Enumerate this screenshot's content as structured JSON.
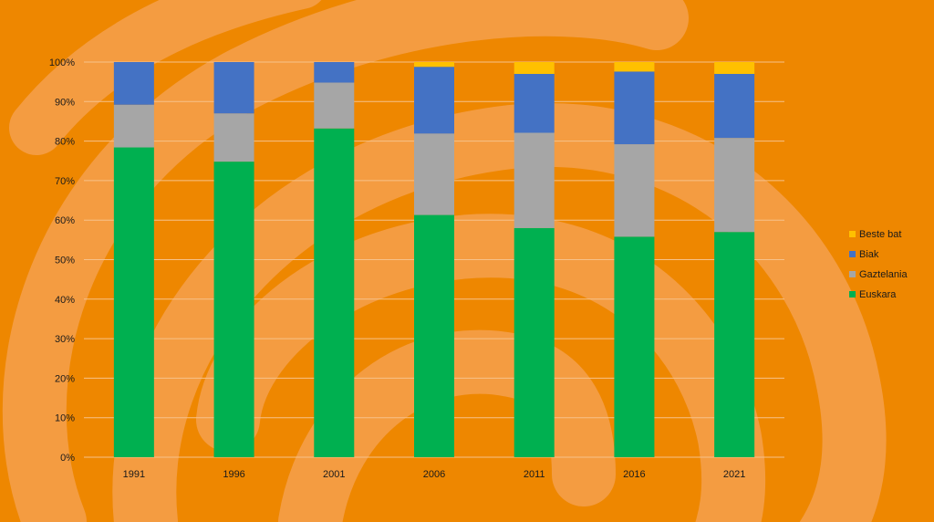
{
  "chart_data": {
    "type": "bar",
    "stacked": true,
    "normalized": true,
    "categories": [
      "1991",
      "1996",
      "2001",
      "2006",
      "2011",
      "2016",
      "2021"
    ],
    "series": [
      {
        "name": "Euskara",
        "color": "#00b050",
        "values": [
          78.4,
          74.8,
          83.2,
          61.3,
          58.0,
          55.8,
          57.0
        ]
      },
      {
        "name": "Gaztelania",
        "color": "#a6a6a6",
        "values": [
          10.8,
          12.2,
          11.6,
          20.6,
          24.1,
          23.4,
          23.8
        ]
      },
      {
        "name": "Biak",
        "color": "#4472c4",
        "values": [
          10.8,
          13.0,
          5.2,
          16.9,
          14.9,
          18.4,
          16.2
        ]
      },
      {
        "name": "Beste bat",
        "color": "#ffc000",
        "values": [
          0.0,
          0.0,
          0.0,
          1.2,
          3.0,
          2.4,
          3.0
        ]
      }
    ],
    "y_ticks": [
      "0%",
      "10%",
      "20%",
      "30%",
      "40%",
      "50%",
      "60%",
      "70%",
      "80%",
      "90%",
      "100%"
    ],
    "ylim": [
      0,
      100
    ],
    "grid": true,
    "legend_position": "right",
    "title": "",
    "xlabel": "",
    "ylabel": ""
  },
  "background": {
    "color": "#ee8700",
    "swirl_color": "#f4a04c"
  }
}
